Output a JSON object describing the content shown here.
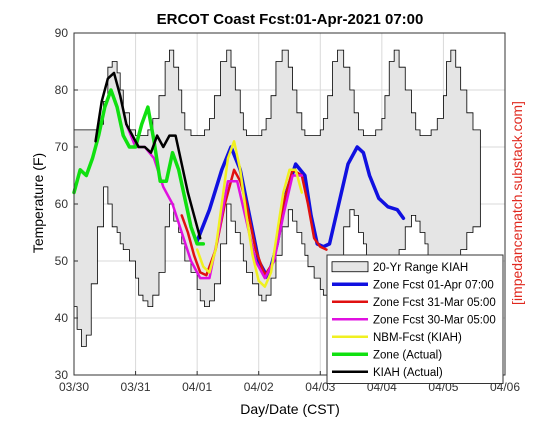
{
  "chart_data": {
    "type": "line",
    "title": "ERCOT Coast   Fcst:01-Apr-2021 07:00",
    "xlabel": "Day/Date (CST)",
    "ylabel": "Temperature (F)",
    "watermark": "[impedancematch.substack.com]",
    "xlim": [
      0,
      7
    ],
    "ylim": [
      30,
      90
    ],
    "x_tick_labels": [
      "03/30",
      "03/31",
      "04/01",
      "04/02",
      "04/03",
      "04/04",
      "04/05",
      "04/06"
    ],
    "y_ticks": [
      30,
      40,
      50,
      60,
      70,
      80,
      90
    ],
    "grid": true,
    "legend_position": "bottom-right",
    "range_band": {
      "name": "20-Yr Range KIAH",
      "color": "#e5e5e5",
      "x": [
        0,
        0.05,
        0.12,
        0.2,
        0.28,
        0.38,
        0.48,
        0.55,
        0.62,
        0.7,
        0.75,
        0.8,
        0.9,
        1.0,
        1.05,
        1.12,
        1.2,
        1.28,
        1.38,
        1.48,
        1.55,
        1.62,
        1.7,
        1.75,
        1.8,
        1.9,
        2.0,
        2.05,
        2.12,
        2.2,
        2.28,
        2.38,
        2.48,
        2.55,
        2.62,
        2.7,
        2.75,
        2.8,
        2.9,
        3.0,
        3.05,
        3.12,
        3.2,
        3.28,
        3.38,
        3.48,
        3.55,
        3.62,
        3.7,
        3.75,
        3.8,
        3.9,
        4.0,
        4.05,
        4.12,
        4.2,
        4.28,
        4.38,
        4.48,
        4.55,
        4.62,
        4.7,
        4.75,
        4.8,
        4.9,
        5.0,
        5.05,
        5.12,
        5.2,
        5.28,
        5.38,
        5.48,
        5.55,
        5.62,
        5.7,
        5.75,
        5.8,
        5.9,
        6.0,
        6.05,
        6.12,
        6.2,
        6.28,
        6.38,
        6.48,
        6.55,
        6.6
      ],
      "low": [
        48,
        42,
        38,
        35,
        37,
        46,
        56,
        63,
        60,
        56,
        55,
        53,
        52,
        50,
        47,
        44,
        43,
        42,
        44,
        48,
        56,
        60,
        57,
        55,
        53,
        50,
        48,
        45,
        43,
        42,
        43,
        46,
        53,
        60,
        57,
        55,
        53,
        50,
        48,
        46,
        44,
        43,
        44,
        47,
        51,
        56,
        59,
        57,
        55,
        53,
        51,
        49,
        47,
        45,
        44,
        45,
        47,
        51,
        56,
        59,
        58,
        55,
        53,
        51,
        49,
        47,
        45,
        44,
        45,
        48,
        52,
        56,
        58,
        57,
        55,
        53,
        51,
        49,
        48,
        47,
        46,
        47,
        49,
        52,
        55,
        56,
        56
      ],
      "high": [
        73,
        73,
        73,
        73,
        73,
        74,
        78,
        84,
        85,
        83,
        80,
        76,
        73,
        72,
        72,
        72,
        73,
        75,
        79,
        85,
        87,
        84,
        80,
        76,
        73,
        72,
        72,
        72,
        73,
        75,
        79,
        85,
        87,
        84,
        80,
        76,
        73,
        72,
        72,
        72,
        73,
        75,
        79,
        85,
        87,
        84,
        80,
        76,
        73,
        72,
        72,
        72,
        73,
        75,
        79,
        85,
        87,
        84,
        80,
        76,
        73,
        72,
        72,
        72,
        73,
        75,
        79,
        85,
        87,
        84,
        80,
        76,
        73,
        72,
        72,
        72,
        73,
        75,
        79,
        85,
        87,
        84,
        80,
        76,
        73,
        73,
        73
      ]
    },
    "series": [
      {
        "name": "Zone Fcst 01-Apr 07:00",
        "color": "#1010e0",
        "width": 3.5,
        "x": [
          2.0,
          2.2,
          2.4,
          2.55,
          2.7,
          2.85,
          3.0,
          3.15,
          3.3,
          3.45,
          3.6,
          3.75,
          3.85,
          3.95,
          4.05,
          4.15,
          4.3,
          4.45,
          4.6,
          4.7,
          4.8,
          4.95,
          5.1,
          5.25,
          5.35
        ],
        "y": [
          53.5,
          59,
          66,
          70,
          66,
          58,
          50,
          47,
          53,
          62,
          67,
          65,
          58,
          53,
          52.5,
          53,
          60,
          67,
          70,
          69,
          65,
          61,
          59.5,
          59,
          57.5
        ]
      },
      {
        "name": "Zone Fcst 31-Mar 05:00",
        "color": "#e01010",
        "width": 2.5,
        "x": [
          1.75,
          1.85,
          1.95,
          2.05,
          2.15,
          2.3,
          2.45,
          2.6,
          2.7,
          2.8,
          2.95,
          3.1,
          3.25,
          3.4,
          3.55,
          3.7,
          3.8,
          3.9,
          4.0,
          4.1
        ],
        "y": [
          58,
          55,
          51,
          48,
          47.5,
          52,
          60,
          66,
          64,
          60,
          52,
          47.5,
          50,
          60,
          66,
          65,
          60,
          54,
          52.5,
          52
        ]
      },
      {
        "name": "Zone Fcst 30-Mar 05:00",
        "color": "#e010e0",
        "width": 2.5,
        "x": [
          0.85,
          1.0,
          1.15,
          1.3,
          1.45,
          1.6,
          1.75,
          1.9,
          2.05,
          2.2,
          2.35,
          2.5,
          2.65,
          2.8,
          2.95,
          3.1,
          3.25,
          3.4,
          3.55,
          3.7
        ],
        "y": [
          74,
          70,
          70,
          68,
          63,
          60,
          55,
          50,
          47,
          47,
          55,
          64,
          64,
          57,
          50,
          47,
          50,
          58,
          65,
          65
        ]
      },
      {
        "name": "NBM-Fcst (KIAH)",
        "color": "#f0f020",
        "width": 2.5,
        "x": [
          2.0,
          2.1,
          2.2,
          2.3,
          2.4,
          2.5,
          2.6,
          2.7,
          2.8,
          2.9,
          3.0,
          3.1,
          3.2,
          3.3,
          3.4,
          3.5,
          3.6,
          3.7
        ],
        "y": [
          52,
          49,
          48,
          52,
          60,
          68,
          71,
          66,
          58,
          51,
          46.5,
          45.5,
          48,
          55,
          62,
          66,
          66,
          62
        ]
      },
      {
        "name": "Zone (Actual)",
        "color": "#10e010",
        "width": 3.5,
        "x": [
          0.0,
          0.1,
          0.2,
          0.3,
          0.4,
          0.5,
          0.6,
          0.7,
          0.8,
          0.9,
          1.0,
          1.1,
          1.2,
          1.3,
          1.4,
          1.5,
          1.6,
          1.7,
          1.8,
          1.9,
          2.0,
          2.1
        ],
        "y": [
          62,
          66,
          65,
          68,
          72,
          77,
          80,
          77,
          72,
          70,
          70,
          74,
          77,
          71,
          64,
          64,
          69,
          66,
          61,
          56,
          53,
          53
        ]
      },
      {
        "name": "KIAH (Actual)",
        "color": "#000000",
        "width": 2.5,
        "x": [
          0.35,
          0.45,
          0.55,
          0.65,
          0.75,
          0.85,
          0.95,
          1.05,
          1.15,
          1.25,
          1.35,
          1.45,
          1.55,
          1.65,
          1.75,
          1.85,
          1.95,
          2.05
        ],
        "y": [
          71,
          78,
          82,
          83,
          79,
          74,
          72,
          70,
          70,
          69,
          72,
          70,
          72,
          72,
          67,
          62,
          58,
          54
        ]
      }
    ]
  }
}
